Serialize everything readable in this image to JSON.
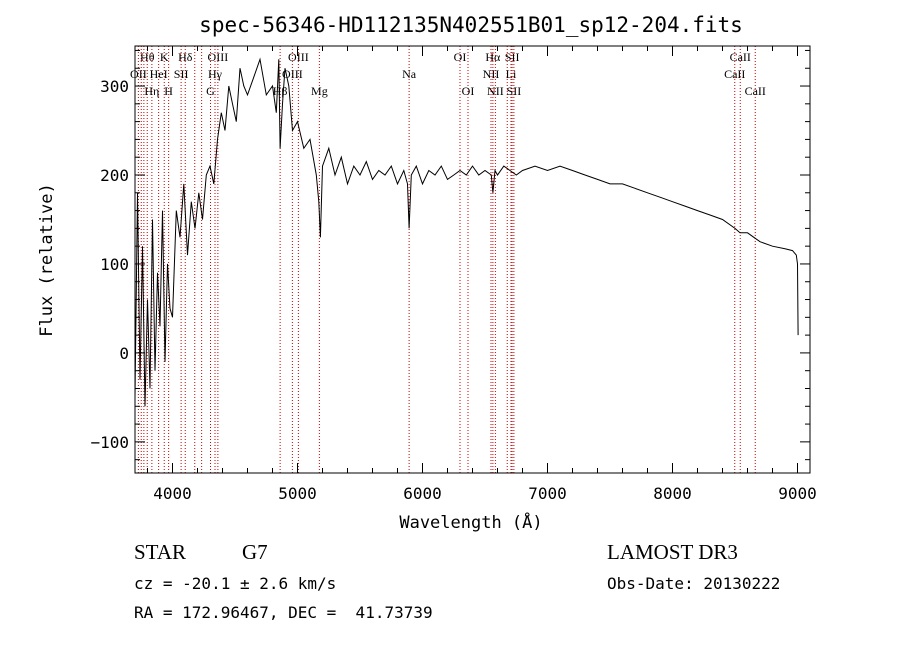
{
  "chart_data": {
    "type": "line",
    "title": "spec-56346-HD112135N402551B01_sp12-204.fits",
    "xlabel": "Wavelength (Å)",
    "ylabel": "Flux (relative)",
    "xlim": [
      3700,
      9100
    ],
    "ylim": [
      -135,
      345
    ],
    "xticks": [
      4000,
      5000,
      6000,
      7000,
      8000,
      9000
    ],
    "yticks": [
      -100,
      0,
      100,
      200,
      300
    ],
    "series": [
      {
        "name": "spectrum",
        "x": [
          3700,
          3720,
          3740,
          3760,
          3780,
          3800,
          3820,
          3840,
          3860,
          3880,
          3900,
          3920,
          3940,
          3960,
          3980,
          4000,
          4030,
          4060,
          4090,
          4120,
          4150,
          4180,
          4210,
          4240,
          4270,
          4300,
          4330,
          4360,
          4390,
          4420,
          4450,
          4480,
          4510,
          4540,
          4570,
          4600,
          4650,
          4700,
          4750,
          4800,
          4830,
          4850,
          4861,
          4880,
          4900,
          4930,
          4960,
          5000,
          5050,
          5100,
          5150,
          5170,
          5183,
          5200,
          5250,
          5300,
          5350,
          5400,
          5450,
          5500,
          5550,
          5600,
          5650,
          5700,
          5750,
          5800,
          5850,
          5880,
          5893,
          5910,
          5950,
          6000,
          6050,
          6100,
          6150,
          6200,
          6250,
          6300,
          6350,
          6400,
          6450,
          6500,
          6550,
          6563,
          6580,
          6600,
          6650,
          6700,
          6750,
          6800,
          6900,
          7000,
          7100,
          7200,
          7300,
          7400,
          7500,
          7600,
          7700,
          7800,
          7900,
          8000,
          8100,
          8200,
          8300,
          8400,
          8500,
          8540,
          8600,
          8650,
          8700,
          8800,
          8900,
          8960,
          8990,
          9000,
          9005
        ],
        "y": [
          -50,
          180,
          -30,
          120,
          -60,
          60,
          -40,
          150,
          -20,
          90,
          30,
          160,
          -10,
          100,
          50,
          40,
          160,
          130,
          190,
          110,
          170,
          140,
          180,
          150,
          200,
          210,
          190,
          240,
          270,
          250,
          300,
          280,
          260,
          320,
          300,
          290,
          310,
          330,
          290,
          300,
          270,
          330,
          230,
          280,
          320,
          300,
          250,
          260,
          230,
          240,
          200,
          170,
          130,
          210,
          230,
          200,
          220,
          190,
          210,
          200,
          215,
          195,
          205,
          200,
          210,
          190,
          205,
          190,
          140,
          200,
          210,
          190,
          205,
          200,
          210,
          195,
          200,
          205,
          200,
          210,
          200,
          205,
          200,
          180,
          205,
          200,
          210,
          205,
          200,
          205,
          210,
          205,
          210,
          205,
          200,
          195,
          190,
          190,
          185,
          180,
          175,
          170,
          165,
          160,
          155,
          150,
          140,
          135,
          135,
          130,
          125,
          120,
          117,
          115,
          110,
          100,
          20
        ]
      }
    ],
    "line_labels": [
      {
        "text": "Hθ",
        "x": 3798,
        "row": 1
      },
      {
        "text": "OII",
        "x": 3727,
        "row": 2
      },
      {
        "text": "Hη",
        "x": 3835,
        "row": 3
      },
      {
        "text": "HeI",
        "x": 3889,
        "row": 2
      },
      {
        "text": "K",
        "x": 3934,
        "row": 1
      },
      {
        "text": "H",
        "x": 3969,
        "row": 3
      },
      {
        "text": "SII",
        "x": 4069,
        "row": 2
      },
      {
        "text": "Hδ",
        "x": 4102,
        "row": 1
      },
      {
        "text": "OIII",
        "x": 4363,
        "row": 1
      },
      {
        "text": "Hγ",
        "x": 4340,
        "row": 2
      },
      {
        "text": "G",
        "x": 4304,
        "row": 3
      },
      {
        "text": "Hβ",
        "x": 4861,
        "row": 3
      },
      {
        "text": "OIII",
        "x": 5007,
        "row": 1
      },
      {
        "text": "OIII",
        "x": 4959,
        "row": 2
      },
      {
        "text": "Mg",
        "x": 5175,
        "row": 3
      },
      {
        "text": "Na",
        "x": 5893,
        "row": 2
      },
      {
        "text": "OI",
        "x": 6300,
        "row": 1
      },
      {
        "text": "OI",
        "x": 6364,
        "row": 3
      },
      {
        "text": "Hα",
        "x": 6563,
        "row": 1
      },
      {
        "text": "NII",
        "x": 6548,
        "row": 2
      },
      {
        "text": "NII",
        "x": 6583,
        "row": 3
      },
      {
        "text": "SII",
        "x": 6717,
        "row": 1
      },
      {
        "text": "Li",
        "x": 6708,
        "row": 2
      },
      {
        "text": "SII",
        "x": 6731,
        "row": 3
      },
      {
        "text": "CaII",
        "x": 8542,
        "row": 1
      },
      {
        "text": "CaII",
        "x": 8498,
        "row": 2
      },
      {
        "text": "CaII",
        "x": 8662,
        "row": 3
      }
    ],
    "extra_lines": [
      3750,
      3771,
      4178,
      4233,
      6678
    ],
    "marker_color": "#cc0000",
    "line_color": "#000000"
  },
  "footer": {
    "object_class": "STAR",
    "subclass": "G7",
    "survey": "LAMOST DR3",
    "cz": "cz = -20.1 ± 2.6 km/s",
    "obs_date": "Obs-Date: 20130222",
    "coords": "RA = 172.96467, DEC =  41.73739"
  }
}
